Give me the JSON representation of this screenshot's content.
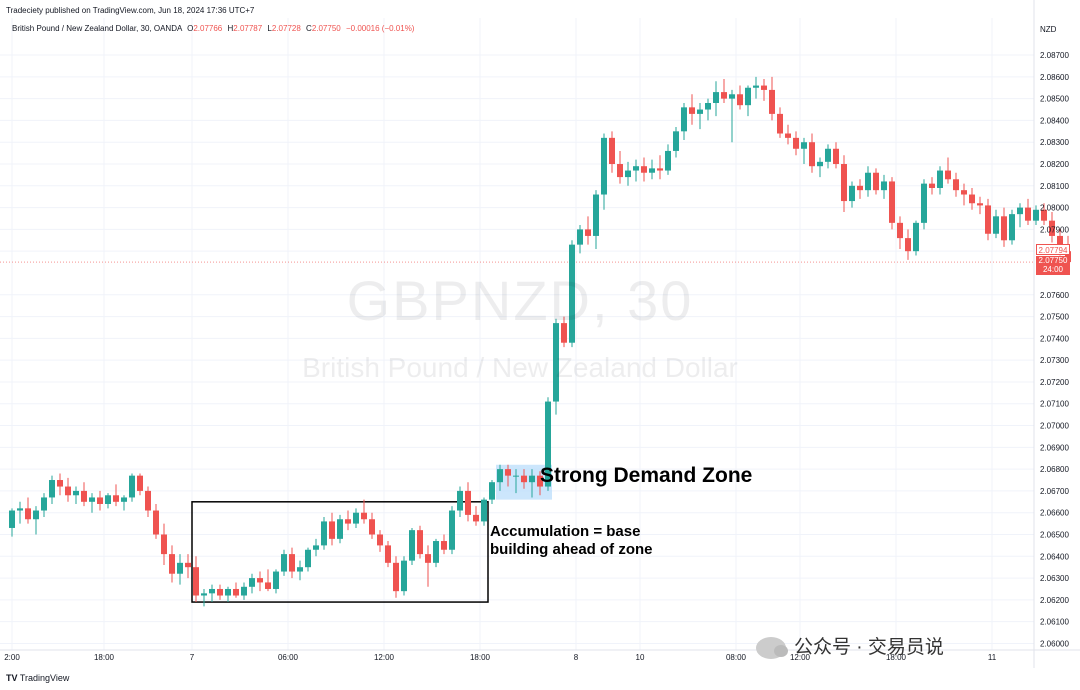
{
  "header": {
    "published_by": "Tradeciety published on TradingView.com, Jun 18, 2024 17:36 UTC+7",
    "symbol_desc": "British Pound / New Zealand Dollar, 30, OANDA",
    "open_label": "O",
    "open_value": "2.07766",
    "high_label": "H",
    "high_value": "2.07787",
    "low_label": "L",
    "low_value": "2.07728",
    "close_label": "C",
    "close_value": "2.07750",
    "change": "−0.00016 (−0.01%)"
  },
  "watermark": {
    "symbol": "GBPNZD, 30",
    "name": "British Pound / New Zealand Dollar"
  },
  "price_axis": {
    "currency": "NZD",
    "current_price": "2.07750",
    "countdown": "24:00",
    "prev_price": "2.07794"
  },
  "annotations": {
    "zone_label": "Strong Demand Zone",
    "accumulation_line1": "Accumulation = base",
    "accumulation_line2": "building ahead of zone"
  },
  "footer": {
    "brand": "TradingView",
    "source_watermark": "公众号 · 交易员说"
  },
  "colors": {
    "up": "#26a69a",
    "down": "#ef5350",
    "zone_fill": "#bbdefb",
    "grid": "#f0f3fa"
  },
  "chart_data": {
    "type": "candlestick",
    "title": "GBPNZD, 30",
    "xlabel": "",
    "ylabel": "",
    "ylim": [
      2.0597,
      2.0887
    ],
    "y_ticks": [
      "2.08700",
      "2.08600",
      "2.08500",
      "2.08400",
      "2.08300",
      "2.08200",
      "2.08100",
      "2.08000",
      "2.07900",
      "2.07800",
      "2.07600",
      "2.07500",
      "2.07400",
      "2.07300",
      "2.07200",
      "2.07100",
      "2.07000",
      "2.06900",
      "2.06800",
      "2.06700",
      "2.06600",
      "2.06500",
      "2.06400",
      "2.06300",
      "2.06200",
      "2.06100",
      "2.06000"
    ],
    "x_ticks": [
      {
        "label": "2:00",
        "index": 0
      },
      {
        "label": "18:00",
        "index": 11.5
      },
      {
        "label": "7",
        "index": 22.5
      },
      {
        "label": "06:00",
        "index": 34.5
      },
      {
        "label": "12:00",
        "index": 46.5
      },
      {
        "label": "18:00",
        "index": 58.5
      },
      {
        "label": "8",
        "index": 70.5
      },
      {
        "label": "10",
        "index": 78.5
      },
      {
        "label": "08:00",
        "index": 90.5
      },
      {
        "label": "12:00",
        "index": 98.5
      },
      {
        "label": "18:00",
        "index": 110.5
      },
      {
        "label": "11",
        "index": 122.5
      }
    ],
    "candles": [
      [
        2.0653,
        2.0662,
        2.0649,
        2.0661
      ],
      [
        2.0661,
        2.0665,
        2.0655,
        2.0662
      ],
      [
        2.0662,
        2.0667,
        2.0655,
        2.0657
      ],
      [
        2.0657,
        2.0663,
        2.065,
        2.0661
      ],
      [
        2.0661,
        2.0669,
        2.0658,
        2.0667
      ],
      [
        2.0667,
        2.0677,
        2.0664,
        2.0675
      ],
      [
        2.0675,
        2.0678,
        2.0668,
        2.0672
      ],
      [
        2.0672,
        2.0676,
        2.0665,
        2.0668
      ],
      [
        2.0668,
        2.0672,
        2.0664,
        2.067
      ],
      [
        2.067,
        2.0674,
        2.0663,
        2.0665
      ],
      [
        2.0665,
        2.0669,
        2.066,
        2.0667
      ],
      [
        2.0667,
        2.067,
        2.0661,
        2.0664
      ],
      [
        2.0664,
        2.0669,
        2.0662,
        2.0668
      ],
      [
        2.0668,
        2.0673,
        2.0663,
        2.0665
      ],
      [
        2.0665,
        2.0668,
        2.0661,
        2.0667
      ],
      [
        2.0667,
        2.0678,
        2.0665,
        2.0677
      ],
      [
        2.0677,
        2.0678,
        2.0668,
        2.067
      ],
      [
        2.067,
        2.0672,
        2.0658,
        2.0661
      ],
      [
        2.0661,
        2.0664,
        2.0648,
        2.065
      ],
      [
        2.065,
        2.0655,
        2.0636,
        2.0641
      ],
      [
        2.0641,
        2.0645,
        2.0628,
        2.0632
      ],
      [
        2.0632,
        2.0641,
        2.0627,
        2.0637
      ],
      [
        2.0637,
        2.0641,
        2.063,
        2.0635
      ],
      [
        2.0635,
        2.064,
        2.0619,
        2.0622
      ],
      [
        2.0622,
        2.0625,
        2.0617,
        2.0623
      ],
      [
        2.0623,
        2.0627,
        2.0619,
        2.0625
      ],
      [
        2.0625,
        2.0627,
        2.062,
        2.0622
      ],
      [
        2.0622,
        2.0626,
        2.0619,
        2.0625
      ],
      [
        2.0625,
        2.0628,
        2.0621,
        2.0622
      ],
      [
        2.0622,
        2.0628,
        2.062,
        2.0626
      ],
      [
        2.0626,
        2.0632,
        2.0623,
        2.063
      ],
      [
        2.063,
        2.0633,
        2.0624,
        2.0628
      ],
      [
        2.0628,
        2.0634,
        2.0624,
        2.0625
      ],
      [
        2.0625,
        2.0634,
        2.0623,
        2.0633
      ],
      [
        2.0633,
        2.0643,
        2.0631,
        2.0641
      ],
      [
        2.0641,
        2.0644,
        2.063,
        2.0633
      ],
      [
        2.0633,
        2.0638,
        2.0629,
        2.0635
      ],
      [
        2.0635,
        2.0644,
        2.0633,
        2.0643
      ],
      [
        2.0643,
        2.0648,
        2.064,
        2.0645
      ],
      [
        2.0645,
        2.0658,
        2.0643,
        2.0656
      ],
      [
        2.0656,
        2.066,
        2.0645,
        2.0648
      ],
      [
        2.0648,
        2.0659,
        2.0646,
        2.0657
      ],
      [
        2.0657,
        2.0661,
        2.0652,
        2.0655
      ],
      [
        2.0655,
        2.0662,
        2.0653,
        2.066
      ],
      [
        2.066,
        2.0666,
        2.0655,
        2.0657
      ],
      [
        2.0657,
        2.066,
        2.0648,
        2.065
      ],
      [
        2.065,
        2.0652,
        2.0642,
        2.0645
      ],
      [
        2.0645,
        2.0647,
        2.0635,
        2.0637
      ],
      [
        2.0637,
        2.064,
        2.0621,
        2.0624
      ],
      [
        2.0624,
        2.064,
        2.0622,
        2.0638
      ],
      [
        2.0638,
        2.0653,
        2.0636,
        2.0652
      ],
      [
        2.0652,
        2.0654,
        2.0639,
        2.0641
      ],
      [
        2.0641,
        2.0645,
        2.0626,
        2.0637
      ],
      [
        2.0637,
        2.0648,
        2.0635,
        2.0647
      ],
      [
        2.0647,
        2.065,
        2.0641,
        2.0643
      ],
      [
        2.0643,
        2.0663,
        2.0641,
        2.0661
      ],
      [
        2.0661,
        2.0672,
        2.0658,
        2.067
      ],
      [
        2.067,
        2.0674,
        2.0656,
        2.0659
      ],
      [
        2.0659,
        2.0663,
        2.0654,
        2.0656
      ],
      [
        2.0656,
        2.0667,
        2.0654,
        2.0666
      ],
      [
        2.0666,
        2.0675,
        2.0664,
        2.0674
      ],
      [
        2.0674,
        2.0682,
        2.067,
        2.068
      ],
      [
        2.068,
        2.0682,
        2.0672,
        2.0677
      ],
      [
        2.0677,
        2.068,
        2.0669,
        2.0677
      ],
      [
        2.0677,
        2.068,
        2.0671,
        2.0674
      ],
      [
        2.0674,
        2.068,
        2.0667,
        2.0677
      ],
      [
        2.0677,
        2.0679,
        2.0668,
        2.0672
      ],
      [
        2.0672,
        2.0713,
        2.067,
        2.0711
      ],
      [
        2.0711,
        2.0749,
        2.0705,
        2.0747
      ],
      [
        2.0747,
        2.075,
        2.0736,
        2.0738
      ],
      [
        2.0738,
        2.0785,
        2.0736,
        2.0783
      ],
      [
        2.0783,
        2.0792,
        2.0779,
        2.079
      ],
      [
        2.079,
        2.0796,
        2.0783,
        2.0787
      ],
      [
        2.0787,
        2.0808,
        2.0781,
        2.0806
      ],
      [
        2.0806,
        2.0834,
        2.0799,
        2.0832
      ],
      [
        2.0832,
        2.0835,
        2.0816,
        2.082
      ],
      [
        2.082,
        2.0826,
        2.0811,
        2.0814
      ],
      [
        2.0814,
        2.0821,
        2.081,
        2.0817
      ],
      [
        2.0817,
        2.0822,
        2.0812,
        2.0819
      ],
      [
        2.0819,
        2.0823,
        2.0812,
        2.0816
      ],
      [
        2.0816,
        2.0822,
        2.0813,
        2.0818
      ],
      [
        2.0818,
        2.0824,
        2.0813,
        2.0817
      ],
      [
        2.0817,
        2.0829,
        2.0815,
        2.0826
      ],
      [
        2.0826,
        2.0837,
        2.0823,
        2.0835
      ],
      [
        2.0835,
        2.0848,
        2.0831,
        2.0846
      ],
      [
        2.0846,
        2.0852,
        2.0838,
        2.0843
      ],
      [
        2.0843,
        2.0848,
        2.0836,
        2.0845
      ],
      [
        2.0845,
        2.085,
        2.084,
        2.0848
      ],
      [
        2.0848,
        2.0858,
        2.0842,
        2.0853
      ],
      [
        2.0853,
        2.0859,
        2.0848,
        2.085
      ],
      [
        2.085,
        2.0854,
        2.083,
        2.0852
      ],
      [
        2.0852,
        2.0856,
        2.0845,
        2.0847
      ],
      [
        2.0847,
        2.0856,
        2.0842,
        2.0855
      ],
      [
        2.0855,
        2.086,
        2.085,
        2.0856
      ],
      [
        2.0856,
        2.0859,
        2.0849,
        2.0854
      ],
      [
        2.0854,
        2.086,
        2.084,
        2.0843
      ],
      [
        2.0843,
        2.0846,
        2.0832,
        2.0834
      ],
      [
        2.0834,
        2.0838,
        2.0829,
        2.0832
      ],
      [
        2.0832,
        2.0835,
        2.0824,
        2.0827
      ],
      [
        2.0827,
        2.0832,
        2.082,
        2.083
      ],
      [
        2.083,
        2.0834,
        2.0816,
        2.0819
      ],
      [
        2.0819,
        2.0823,
        2.0814,
        2.0821
      ],
      [
        2.0821,
        2.0829,
        2.0818,
        2.0827
      ],
      [
        2.0827,
        2.083,
        2.0818,
        2.082
      ],
      [
        2.082,
        2.0824,
        2.0798,
        2.0803
      ],
      [
        2.0803,
        2.0812,
        2.08,
        2.081
      ],
      [
        2.081,
        2.0813,
        2.0804,
        2.0808
      ],
      [
        2.0808,
        2.0819,
        2.0805,
        2.0816
      ],
      [
        2.0816,
        2.0818,
        2.0806,
        2.0808
      ],
      [
        2.0808,
        2.0815,
        2.0804,
        2.0812
      ],
      [
        2.0812,
        2.0814,
        2.079,
        2.0793
      ],
      [
        2.0793,
        2.0796,
        2.0781,
        2.0786
      ],
      [
        2.0786,
        2.079,
        2.0776,
        2.078
      ],
      [
        2.078,
        2.0794,
        2.0778,
        2.0793
      ],
      [
        2.0793,
        2.0813,
        2.079,
        2.0811
      ],
      [
        2.0811,
        2.0814,
        2.0806,
        2.0809
      ],
      [
        2.0809,
        2.0819,
        2.0806,
        2.0817
      ],
      [
        2.0817,
        2.0823,
        2.0811,
        2.0813
      ],
      [
        2.0813,
        2.0816,
        2.0805,
        2.0808
      ],
      [
        2.0808,
        2.0811,
        2.0801,
        2.0806
      ],
      [
        2.0806,
        2.0809,
        2.0799,
        2.0802
      ],
      [
        2.0802,
        2.0805,
        2.0797,
        2.0801
      ],
      [
        2.0801,
        2.0804,
        2.0785,
        2.0788
      ],
      [
        2.0788,
        2.0799,
        2.0786,
        2.0796
      ],
      [
        2.0796,
        2.08,
        2.0782,
        2.0785
      ],
      [
        2.0785,
        2.0799,
        2.0783,
        2.0797
      ],
      [
        2.0797,
        2.0802,
        2.0791,
        2.08
      ],
      [
        2.08,
        2.0804,
        2.0792,
        2.0794
      ],
      [
        2.0794,
        2.0801,
        2.0792,
        2.0799
      ],
      [
        2.0799,
        2.0802,
        2.0792,
        2.0794
      ],
      [
        2.0794,
        2.0798,
        2.0784,
        2.0787
      ],
      [
        2.0787,
        2.079,
        2.0778,
        2.078
      ],
      [
        2.078,
        2.0787,
        2.0772,
        2.0775
      ]
    ],
    "zones": [
      {
        "name": "Strong Demand Zone",
        "from_index": 61,
        "to_index": 67,
        "low": 2.0666,
        "high": 2.0682,
        "style": "filled"
      },
      {
        "name": "Accumulation",
        "from_index": 23,
        "to_index": 59,
        "low": 2.0619,
        "high": 2.0665,
        "style": "outline"
      }
    ]
  }
}
